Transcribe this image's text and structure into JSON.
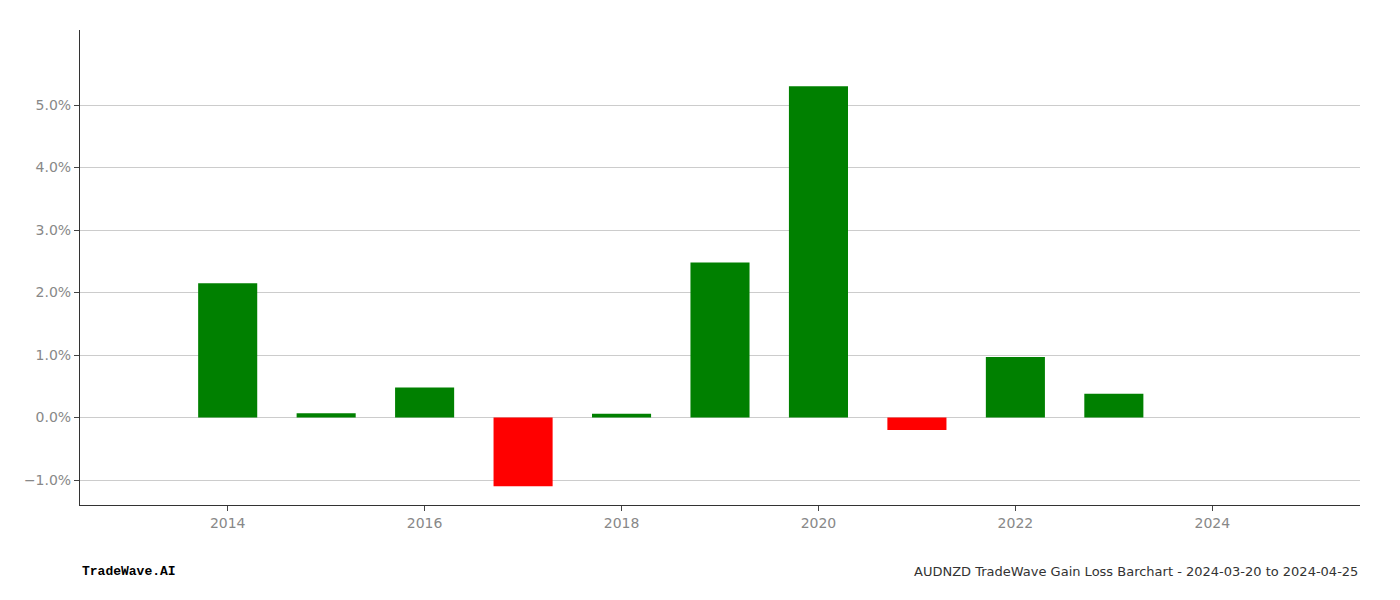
{
  "chart_data": {
    "type": "bar",
    "x": [
      2014,
      2015,
      2016,
      2017,
      2018,
      2019,
      2020,
      2021,
      2022,
      2023
    ],
    "values": [
      0.0215,
      0.0007,
      0.0048,
      -0.011,
      0.0006,
      0.0248,
      0.053,
      -0.002,
      0.0097,
      0.0038
    ],
    "colors": [
      "#008000",
      "#008000",
      "#008000",
      "#ff0000",
      "#008000",
      "#008000",
      "#008000",
      "#ff0000",
      "#008000",
      "#008000"
    ],
    "xlim": [
      2012.5,
      2025.5
    ],
    "xticks": [
      2014,
      2016,
      2018,
      2020,
      2022,
      2024
    ],
    "ylim": [
      -0.014,
      0.062
    ],
    "yticks": [
      {
        "value": -0.01,
        "label": "−1.0%"
      },
      {
        "value": 0.0,
        "label": "0.0%"
      },
      {
        "value": 0.01,
        "label": "1.0%"
      },
      {
        "value": 0.02,
        "label": "2.0%"
      },
      {
        "value": 0.03,
        "label": "3.0%"
      },
      {
        "value": 0.04,
        "label": "4.0%"
      },
      {
        "value": 0.05,
        "label": "5.0%"
      }
    ],
    "grid": true,
    "annotations": [
      "TradeWave.AI",
      "AUDNZD TradeWave Gain Loss Barchart - 2024-03-20 to 2024-04-25"
    ]
  }
}
